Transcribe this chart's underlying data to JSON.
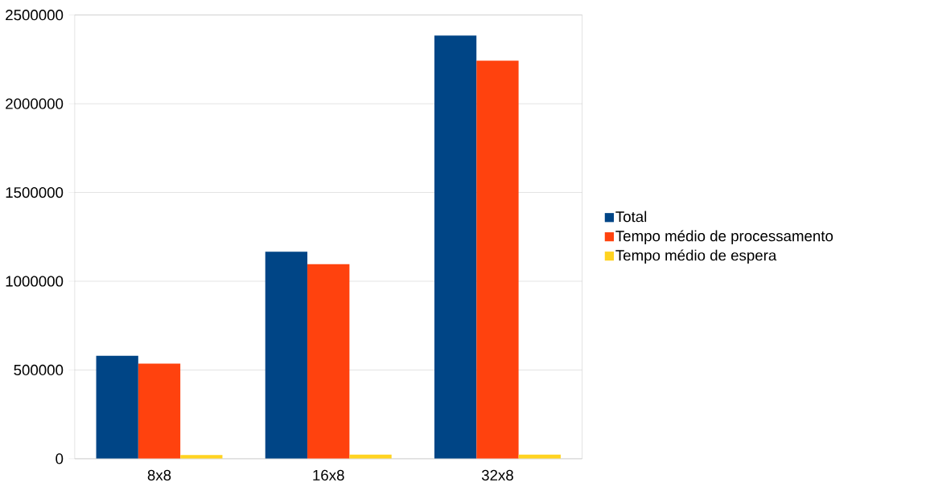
{
  "chart_data": {
    "type": "bar",
    "categories": [
      "8x8",
      "16x8",
      "32x8"
    ],
    "series": [
      {
        "name": "Total",
        "color": "#004586",
        "values": [
          580000,
          1166000,
          2384000
        ]
      },
      {
        "name": "Tempo médio de processamento",
        "color": "#ff420e",
        "values": [
          536000,
          1096000,
          2243000
        ]
      },
      {
        "name": "Tempo médio de espera",
        "color": "#ffd320",
        "values": [
          21000,
          24000,
          24000
        ]
      }
    ],
    "ylim": [
      0,
      2500000
    ],
    "yticks": [
      0,
      500000,
      1000000,
      1500000,
      2000000,
      2500000
    ],
    "grid": "y",
    "legend": "right"
  }
}
